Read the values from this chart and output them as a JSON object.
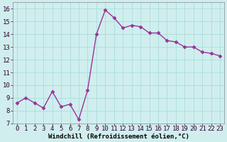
{
  "x": [
    0,
    1,
    2,
    3,
    4,
    5,
    6,
    7,
    8,
    9,
    10,
    11,
    12,
    13,
    14,
    15,
    16,
    17,
    18,
    19,
    20,
    21,
    22,
    23
  ],
  "y": [
    8.6,
    9.0,
    8.6,
    8.2,
    9.5,
    8.3,
    8.5,
    7.3,
    9.6,
    14.0,
    15.9,
    15.3,
    14.5,
    14.7,
    14.6,
    14.1,
    14.1,
    13.5,
    13.4,
    13.0,
    13.0,
    12.6,
    12.5,
    12.3
  ],
  "line_color": "#993399",
  "markersize": 2.5,
  "linewidth": 1.0,
  "bg_color": "#d0eeee",
  "grid_color": "#aadddd",
  "xlabel": "Windchill (Refroidissement éolien,°C)",
  "xlabel_fontsize": 6.5,
  "ylabel_ticks": [
    7,
    8,
    9,
    10,
    11,
    12,
    13,
    14,
    15,
    16
  ],
  "xlim": [
    -0.5,
    23.5
  ],
  "ylim": [
    7,
    16.5
  ],
  "tick_fontsize": 6.5
}
